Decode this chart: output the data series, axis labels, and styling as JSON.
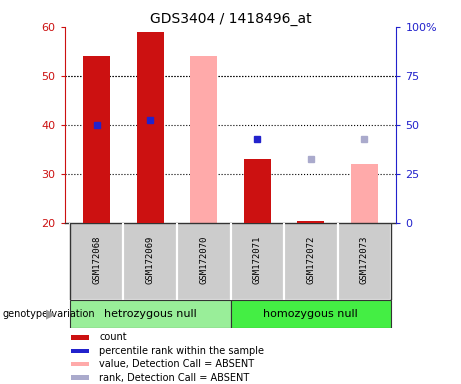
{
  "title": "GDS3404 / 1418496_at",
  "samples": [
    "GSM172068",
    "GSM172069",
    "GSM172070",
    "GSM172071",
    "GSM172072",
    "GSM172073"
  ],
  "ylim_left": [
    20,
    60
  ],
  "ylim_right": [
    0,
    100
  ],
  "yticks_left": [
    20,
    30,
    40,
    50,
    60
  ],
  "yticks_right": [
    0,
    25,
    50,
    75,
    100
  ],
  "red_bar_data": {
    "GSM172068": 54,
    "GSM172069": 59,
    "GSM172071": 33
  },
  "blue_sq_data": {
    "GSM172068": 40,
    "GSM172069": 41,
    "GSM172071": 37
  },
  "pink_bar_data": {
    "GSM172070": 54,
    "GSM172073": 32
  },
  "lb_sq_data": {
    "GSM172072": 33,
    "GSM172073": 37
  },
  "small_red_data": {
    "GSM172072": 20.4
  },
  "small_pink_data": {
    "GSM172072": 20.3
  },
  "red_bar_color": "#cc1111",
  "blue_sq_color": "#2222cc",
  "pink_bar_color": "#ffaaaa",
  "lb_sq_color": "#aaaacc",
  "left_axis_color": "#cc1111",
  "right_axis_color": "#2222cc",
  "bar_bottom": 20,
  "bar_width": 0.5,
  "grid_yticks": [
    30,
    40,
    50
  ],
  "group_bounds": [
    {
      "start": 0,
      "end": 2,
      "label": "hetrozygous null",
      "color": "#99ee99"
    },
    {
      "start": 3,
      "end": 5,
      "label": "homozygous null",
      "color": "#44ee44"
    }
  ],
  "genotype_label": "genotype/variation",
  "legend_labels": [
    "count",
    "percentile rank within the sample",
    "value, Detection Call = ABSENT",
    "rank, Detection Call = ABSENT"
  ],
  "legend_colors": [
    "#cc1111",
    "#2222cc",
    "#ffaaaa",
    "#aaaacc"
  ],
  "bg_color": "#ffffff",
  "box_color": "#cccccc",
  "box_edge_color": "#888888"
}
